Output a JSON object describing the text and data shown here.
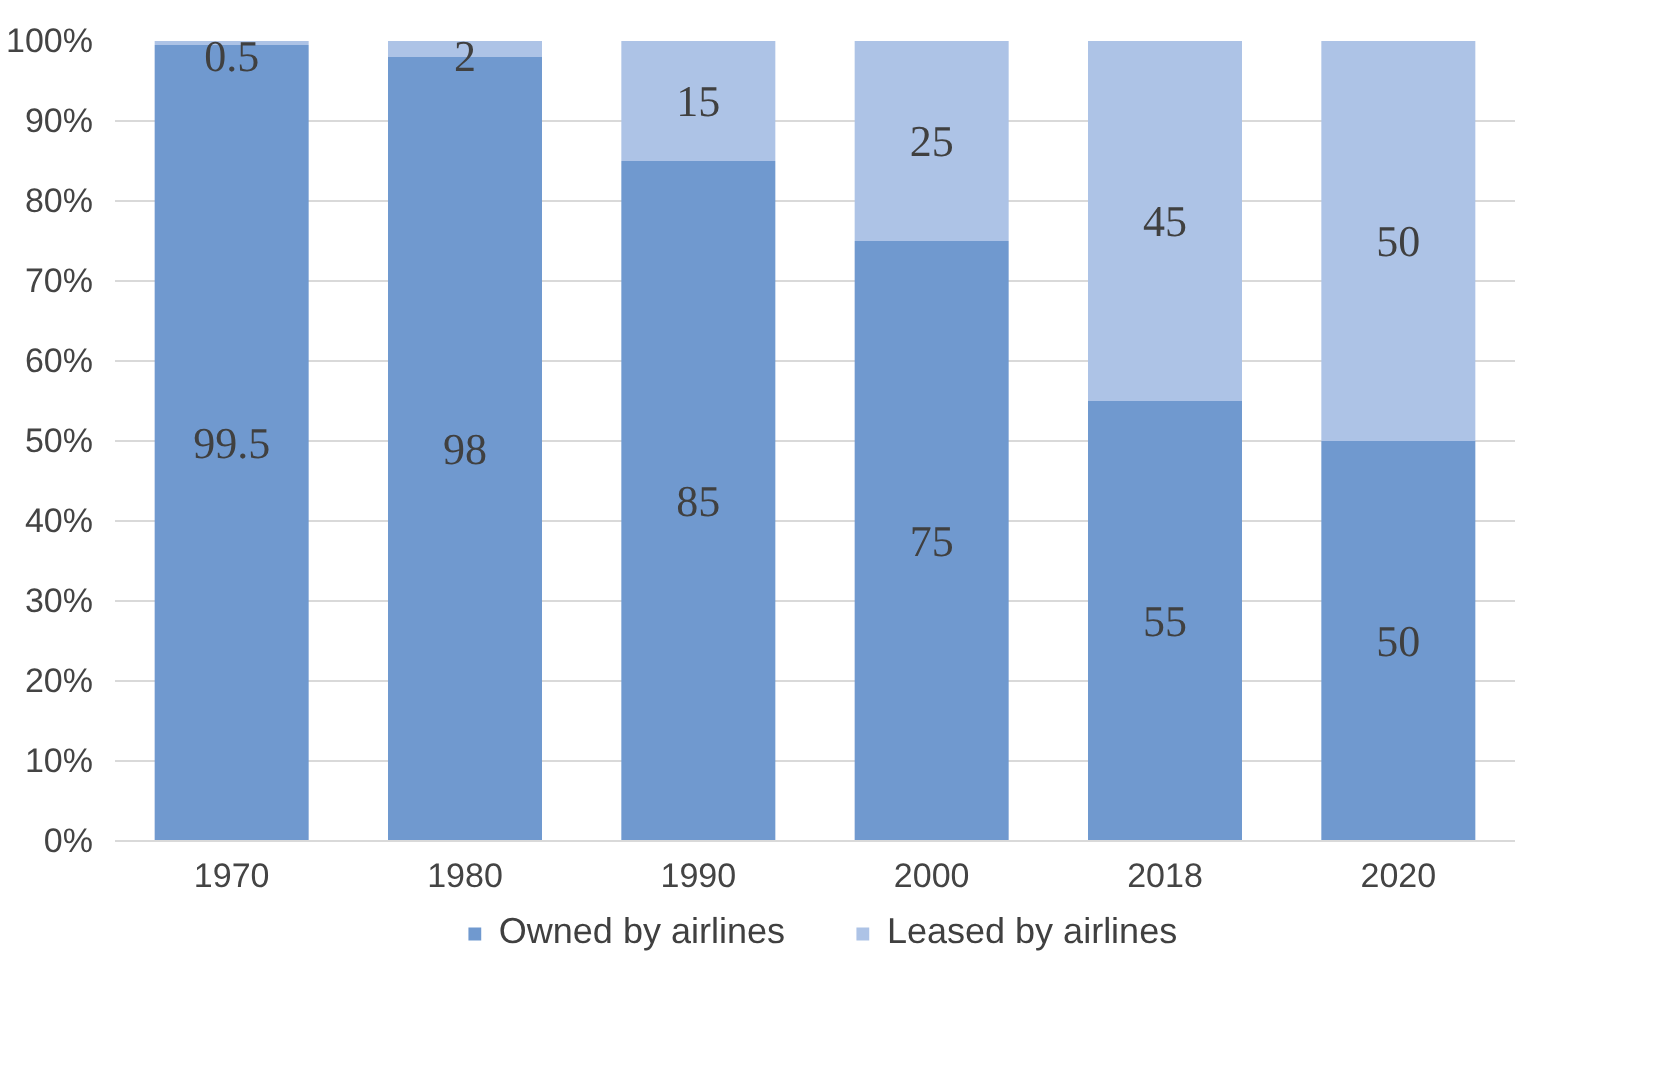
{
  "chart_data": {
    "type": "bar",
    "stacked": true,
    "categories": [
      "1970",
      "1980",
      "1990",
      "2000",
      "2018",
      "2020"
    ],
    "series": [
      {
        "name": "Owned by airlines",
        "color": "#7099cf",
        "values": [
          99.5,
          98,
          85,
          75,
          55,
          50
        ]
      },
      {
        "name": "Leased by airlines",
        "color": "#adc3e6",
        "values": [
          0.5,
          2,
          15,
          25,
          45,
          50
        ]
      }
    ],
    "ylim": [
      0,
      100
    ],
    "yticks": [
      {
        "value": 0,
        "label": "0%"
      },
      {
        "value": 10,
        "label": "10%"
      },
      {
        "value": 20,
        "label": "20%"
      },
      {
        "value": 30,
        "label": "30%"
      },
      {
        "value": 40,
        "label": "40%"
      },
      {
        "value": 50,
        "label": "50%"
      },
      {
        "value": 60,
        "label": "60%"
      },
      {
        "value": 70,
        "label": "70%"
      },
      {
        "value": 80,
        "label": "80%"
      },
      {
        "value": 90,
        "label": "90%"
      },
      {
        "value": 100,
        "label": "100%"
      }
    ],
    "grid": "y",
    "legend": "bottom",
    "data_labels": true
  }
}
